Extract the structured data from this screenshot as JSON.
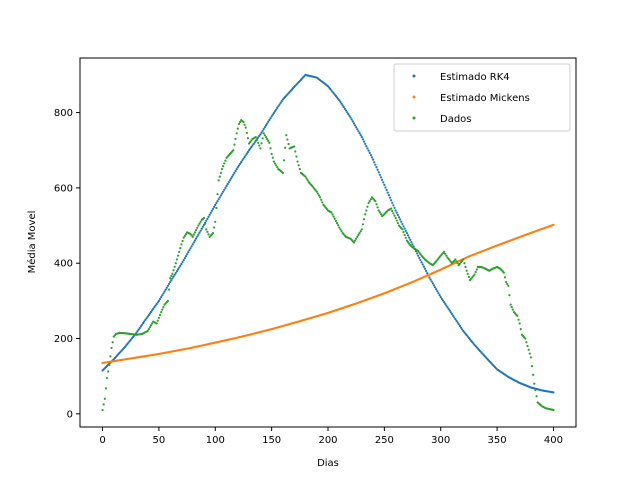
{
  "chart_data": {
    "type": "scatter",
    "xlabel": "Dias",
    "ylabel": "Média Movel",
    "xlim": [
      -20,
      420
    ],
    "ylim": [
      -35,
      945
    ],
    "xticks": [
      0,
      50,
      100,
      150,
      200,
      250,
      300,
      350,
      400
    ],
    "yticks": [
      0,
      200,
      400,
      600,
      800
    ],
    "grid": false,
    "legend_position": "top-right",
    "series": [
      {
        "name": "Estimado RK4",
        "color": "#1f77b4",
        "x": [
          0,
          10,
          20,
          30,
          40,
          50,
          60,
          70,
          80,
          90,
          100,
          110,
          120,
          130,
          140,
          150,
          160,
          170,
          180,
          190,
          200,
          210,
          220,
          230,
          240,
          250,
          260,
          270,
          280,
          290,
          300,
          310,
          320,
          330,
          340,
          350,
          360,
          370,
          380,
          390,
          400
        ],
        "y": [
          115,
          145,
          178,
          215,
          258,
          300,
          350,
          398,
          450,
          502,
          555,
          605,
          655,
          700,
          742,
          790,
          835,
          868,
          900,
          893,
          870,
          833,
          787,
          735,
          675,
          608,
          540,
          480,
          420,
          362,
          310,
          265,
          220,
          183,
          150,
          118,
          98,
          82,
          70,
          62,
          57
        ]
      },
      {
        "name": "Estimado Mickens",
        "color": "#ff7f0e",
        "x": [
          0,
          25,
          50,
          75,
          100,
          125,
          150,
          175,
          200,
          225,
          250,
          275,
          300,
          325,
          350,
          375,
          400
        ],
        "y": [
          135,
          147,
          159,
          173,
          189,
          206,
          225,
          246,
          268,
          293,
          320,
          350,
          383,
          418,
          447,
          475,
          502
        ]
      },
      {
        "name": "Dados",
        "color": "#2ca02c",
        "x": [
          0,
          2,
          4,
          6,
          8,
          10,
          12,
          15,
          20,
          25,
          30,
          35,
          40,
          45,
          48,
          50,
          52,
          55,
          58,
          60,
          62,
          65,
          68,
          70,
          72,
          75,
          78,
          80,
          85,
          88,
          90,
          92,
          95,
          98,
          100,
          103,
          106,
          110,
          113,
          116,
          119,
          121,
          123,
          125,
          127,
          130,
          133,
          136,
          140,
          143,
          146,
          148,
          150,
          152,
          154,
          156,
          158,
          160,
          163,
          166,
          170,
          173,
          176,
          180,
          183,
          186,
          190,
          193,
          196,
          200,
          203,
          206,
          210,
          213,
          216,
          220,
          223,
          226,
          230,
          233,
          236,
          239,
          242,
          245,
          248,
          250,
          253,
          256,
          260,
          263,
          266,
          270,
          273,
          276,
          280,
          283,
          286,
          290,
          293,
          296,
          300,
          303,
          306,
          310,
          313,
          316,
          320,
          323,
          326,
          330,
          333,
          336,
          340,
          343,
          346,
          350,
          353,
          356,
          358,
          360,
          362,
          365,
          368,
          370,
          372,
          375,
          378,
          380,
          383,
          386,
          390,
          393,
          396,
          400
        ],
        "y": [
          10,
          40,
          95,
          130,
          175,
          205,
          212,
          215,
          214,
          212,
          210,
          212,
          220,
          245,
          240,
          255,
          270,
          290,
          300,
          360,
          372,
          400,
          430,
          450,
          468,
          482,
          478,
          470,
          500,
          515,
          520,
          490,
          470,
          480,
          510,
          620,
          650,
          680,
          690,
          700,
          745,
          770,
          780,
          775,
          760,
          718,
          730,
          735,
          705,
          745,
          730,
          720,
          690,
          670,
          660,
          650,
          645,
          640,
          740,
          705,
          710,
          670,
          640,
          630,
          615,
          605,
          590,
          575,
          555,
          540,
          535,
          518,
          495,
          480,
          470,
          465,
          455,
          470,
          490,
          530,
          560,
          575,
          565,
          540,
          525,
          530,
          540,
          545,
          520,
          500,
          490,
          460,
          448,
          440,
          432,
          420,
          410,
          400,
          395,
          405,
          420,
          430,
          415,
          400,
          410,
          395,
          410,
          380,
          355,
          370,
          390,
          390,
          385,
          380,
          385,
          390,
          385,
          375,
          350,
          340,
          290,
          270,
          260,
          240,
          210,
          200,
          170,
          150,
          80,
          30,
          20,
          15,
          13,
          10
        ]
      }
    ]
  }
}
